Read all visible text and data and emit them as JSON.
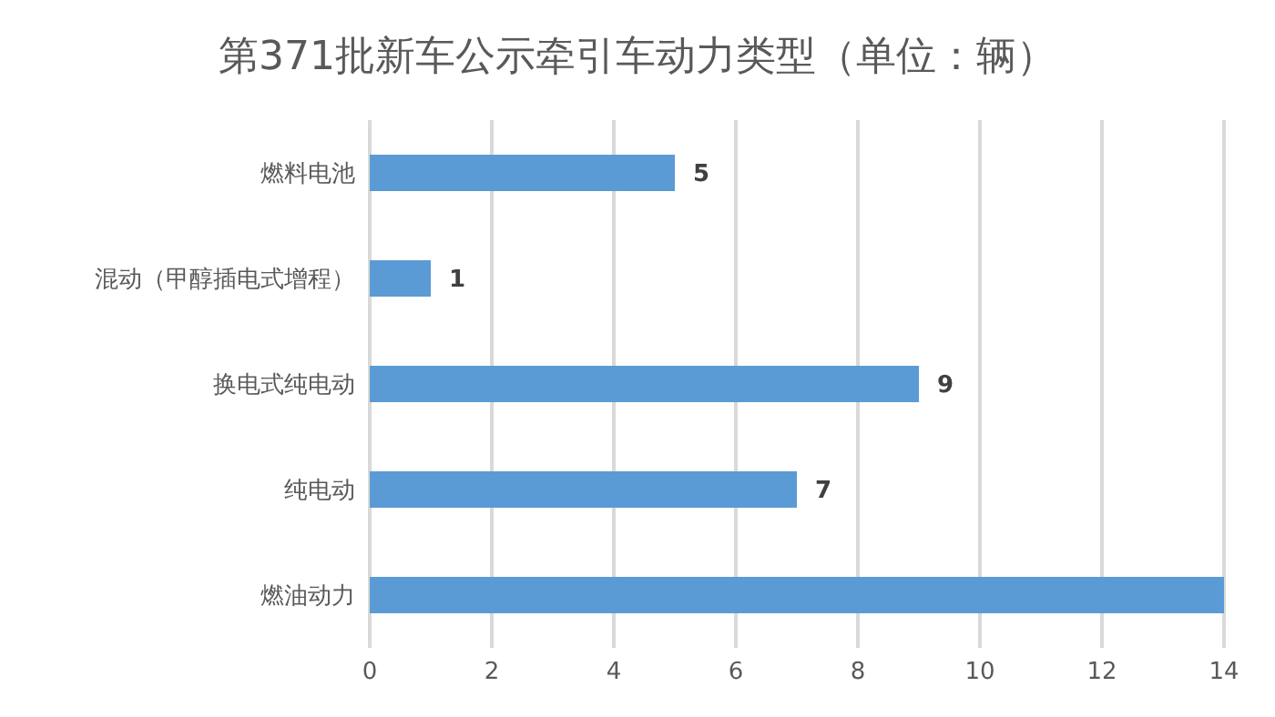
{
  "chart_data": {
    "type": "bar",
    "orientation": "horizontal",
    "title": "第371批新车公示牵引车动力类型（单位：辆）",
    "categories": [
      "燃料电池",
      "混动（甲醇插电式增程）",
      "换电式纯电动",
      "纯电动",
      "燃油动力"
    ],
    "values": [
      5,
      1,
      9,
      7,
      14
    ],
    "value_labels": [
      "5",
      "1",
      "9",
      "7",
      null
    ],
    "color": "#5b9bd5",
    "xlim": [
      0,
      14
    ],
    "xticks": [
      0,
      2,
      4,
      6,
      8,
      10,
      12,
      14
    ],
    "grid": "x",
    "legend": false
  }
}
